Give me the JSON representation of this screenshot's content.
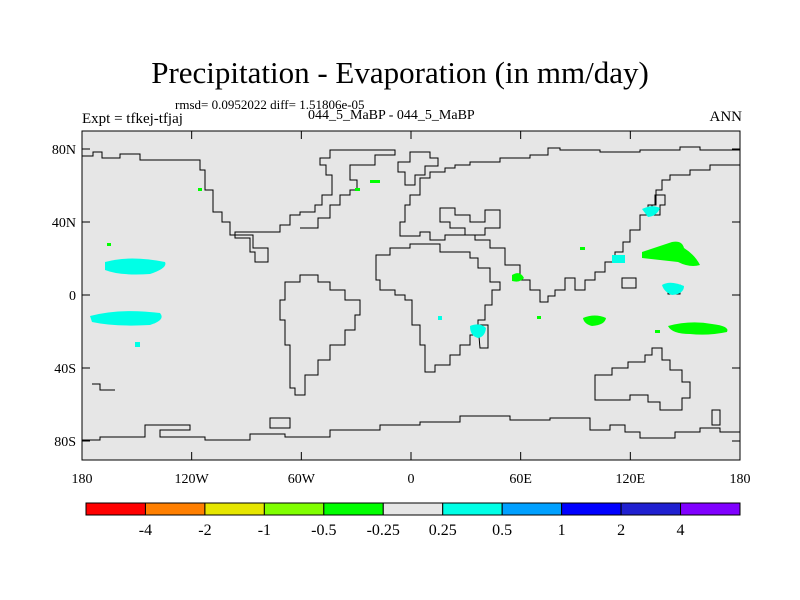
{
  "title": "Precipitation - Evaporation (in mm/day)",
  "stats": "rmsd= 0.0952022 diff= 1.51806e-05",
  "case_label": "044_5_MaBP - 044_5_MaBP",
  "expt_label": "Expt = tfkej-tfjaj",
  "season": "ANN",
  "lat_labels": [
    "80N",
    "40N",
    "0",
    "40S",
    "80S"
  ],
  "lon_labels": [
    "180",
    "120W",
    "60W",
    "0",
    "60E",
    "120E",
    "180"
  ],
  "colorbar": {
    "colors": [
      "#ff0000",
      "#ff7f00",
      "#e6e600",
      "#80ff00",
      "#00ff00",
      "#e6e6e6",
      "#00ffe6",
      "#00a0ff",
      "#0000ff",
      "#2020d0",
      "#8000ff"
    ],
    "labels": [
      "-4",
      "-2",
      "-1",
      "-0.5",
      "-0.25",
      "0.25",
      "0.5",
      "1",
      "2",
      "4"
    ]
  },
  "colors": {
    "background_field": "#e6e6e6",
    "coastline": "#000000",
    "positive_patch": "#00ffe6",
    "negative_patch": "#00ff00"
  }
}
